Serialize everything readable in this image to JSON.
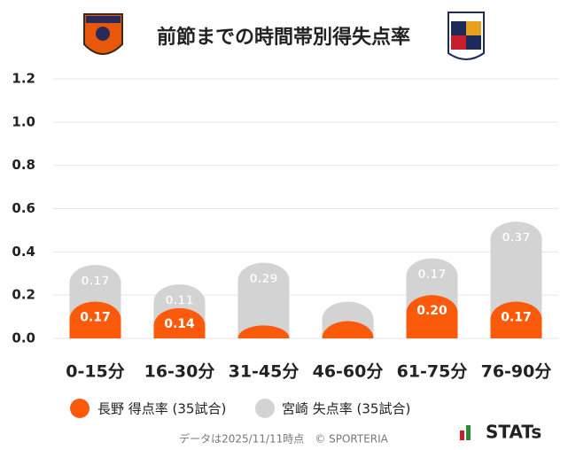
{
  "chart_data": {
    "type": "stacked_bar",
    "title": "前節までの時間帯別得失点率",
    "categories": [
      "0-15分",
      "16-30分",
      "31-45分",
      "46-60分",
      "61-75分",
      "76-90分"
    ],
    "series": [
      {
        "name": "長野 得点率 (35試合)",
        "color": "#fa5a0a",
        "values": [
          0.17,
          0.14,
          0.06,
          0.08,
          0.2,
          0.17
        ],
        "value_labels": [
          "0.17",
          "0.14",
          null,
          null,
          "0.20",
          "0.17"
        ]
      },
      {
        "name": "宮崎 失点率 (35試合)",
        "color": "#d3d3d3",
        "values": [
          0.17,
          0.11,
          0.29,
          0.09,
          0.17,
          0.37
        ],
        "value_labels": [
          "0.17",
          "0.11",
          "0.29",
          null,
          "0.17",
          "0.37"
        ]
      }
    ],
    "ylim": [
      0,
      1.2
    ],
    "yticks": [
      {
        "value": 0,
        "label": "0.0"
      },
      0.2,
      0.4,
      0.6,
      0.8,
      {
        "value": 1,
        "label": "1.0"
      },
      1.2
    ],
    "grid": true,
    "legend": "bottom",
    "footer": "データは2025/11/11時点　© SPORTERIA",
    "brand": "STATs"
  }
}
